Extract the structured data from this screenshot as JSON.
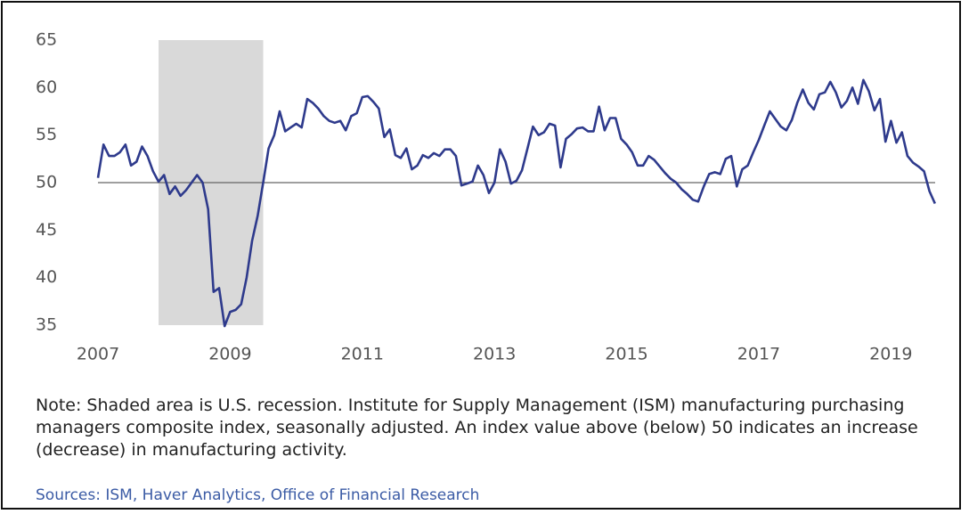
{
  "chart_data": {
    "type": "line",
    "x": [
      2007,
      2007.083,
      2007.167,
      2007.25,
      2007.333,
      2007.417,
      2007.5,
      2007.583,
      2007.667,
      2007.75,
      2007.833,
      2007.917,
      2008,
      2008.083,
      2008.167,
      2008.25,
      2008.333,
      2008.417,
      2008.5,
      2008.583,
      2008.667,
      2008.75,
      2008.833,
      2008.917,
      2009,
      2009.083,
      2009.167,
      2009.25,
      2009.333,
      2009.417,
      2009.5,
      2009.583,
      2009.667,
      2009.75,
      2009.833,
      2009.917,
      2010,
      2010.083,
      2010.167,
      2010.25,
      2010.333,
      2010.417,
      2010.5,
      2010.583,
      2010.667,
      2010.75,
      2010.833,
      2010.917,
      2011,
      2011.083,
      2011.167,
      2011.25,
      2011.333,
      2011.417,
      2011.5,
      2011.583,
      2011.667,
      2011.75,
      2011.833,
      2011.917,
      2012,
      2012.083,
      2012.167,
      2012.25,
      2012.333,
      2012.417,
      2012.5,
      2012.583,
      2012.667,
      2012.75,
      2012.833,
      2012.917,
      2013,
      2013.083,
      2013.167,
      2013.25,
      2013.333,
      2013.417,
      2013.5,
      2013.583,
      2013.667,
      2013.75,
      2013.833,
      2013.917,
      2014,
      2014.083,
      2014.167,
      2014.25,
      2014.333,
      2014.417,
      2014.5,
      2014.583,
      2014.667,
      2014.75,
      2014.833,
      2014.917,
      2015,
      2015.083,
      2015.167,
      2015.25,
      2015.333,
      2015.417,
      2015.5,
      2015.583,
      2015.667,
      2015.75,
      2015.833,
      2015.917,
      2016,
      2016.083,
      2016.167,
      2016.25,
      2016.333,
      2016.417,
      2016.5,
      2016.583,
      2016.667,
      2016.75,
      2016.833,
      2016.917,
      2017,
      2017.083,
      2017.167,
      2017.25,
      2017.333,
      2017.417,
      2017.5,
      2017.583,
      2017.667,
      2017.75,
      2017.833,
      2017.917,
      2018,
      2018.083,
      2018.167,
      2018.25,
      2018.333,
      2018.417,
      2018.5,
      2018.583,
      2018.667,
      2018.75,
      2018.833,
      2018.917,
      2019,
      2019.083,
      2019.167,
      2019.25,
      2019.333,
      2019.417,
      2019.5,
      2019.583,
      2019.667
    ],
    "series": [
      {
        "color": "#2e3a8c",
        "values": [
          50.5,
          54,
          52.8,
          52.8,
          53.2,
          54,
          51.8,
          52.2,
          53.8,
          52.8,
          51.2,
          50.1,
          50.8,
          48.8,
          49.6,
          48.6,
          49.2,
          50,
          50.8,
          50,
          47.2,
          38.5,
          38.9,
          34.9,
          36.4,
          36.6,
          37.2,
          40,
          43.9,
          46.5,
          50,
          53.6,
          55,
          57.5,
          55.4,
          55.8,
          56.2,
          55.8,
          58.8,
          58.4,
          57.8,
          57,
          56.5,
          56.3,
          56.5,
          55.5,
          57,
          57.3,
          59,
          59.1,
          58.5,
          57.8,
          54.8,
          55.6,
          52.9,
          52.6,
          53.6,
          51.4,
          51.8,
          52.9,
          52.6,
          53.1,
          52.8,
          53.5,
          53.5,
          52.8,
          49.7,
          49.9,
          50.1,
          51.8,
          50.8,
          48.9,
          50,
          53.5,
          52.2,
          49.9,
          50.2,
          51.3,
          53.6,
          55.9,
          55,
          55.3,
          56.2,
          56,
          51.6,
          54.6,
          55.1,
          55.7,
          55.8,
          55.4,
          55.4,
          58,
          55.5,
          56.8,
          56.8,
          54.6,
          54,
          53.2,
          51.8,
          51.8,
          52.8,
          52.4,
          51.7,
          51,
          50.4,
          50,
          49.3,
          48.8,
          48.2,
          48,
          49.6,
          50.9,
          51.1,
          50.9,
          52.5,
          52.8,
          49.6,
          51.4,
          51.8,
          53.2,
          54.5,
          56,
          57.5,
          56.7,
          55.9,
          55.5,
          56.6,
          58.4,
          59.8,
          58.4,
          57.7,
          59.3,
          59.5,
          60.6,
          59.5,
          57.9,
          58.6,
          60,
          58.3,
          60.8,
          59.6,
          57.6,
          58.8,
          54.3,
          56.5,
          54.2,
          55.3,
          52.8,
          52.1,
          51.7,
          51.2,
          49.1,
          47.8
        ]
      }
    ],
    "xlim": [
      2007,
      2019.75
    ],
    "xticks": [
      2007,
      2009,
      2011,
      2013,
      2015,
      2017,
      2019
    ],
    "ylim": [
      35,
      65
    ],
    "yticks": [
      35,
      40,
      45,
      50,
      55,
      60,
      65
    ],
    "reference_line": 50,
    "reference_color": "#666666",
    "shaded_ranges": [
      [
        2007.917,
        2009.5
      ]
    ],
    "shade_color": "#d9d9d9",
    "note": "Note: Shaded area is U.S. recession. Institute for Supply Management (ISM) manufacturing purchasing managers composite index, seasonally adjusted. An index value above (below) 50 indicates an increase (decrease) in manufacturing activity.",
    "sources": "Sources: ISM, Haver Analytics, Office of Financial Research"
  }
}
